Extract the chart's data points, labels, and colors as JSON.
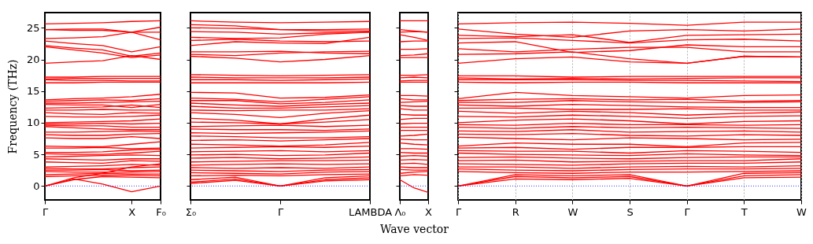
{
  "chart_data": [
    {
      "type": "line",
      "ylabel": "Frequency (THz)",
      "ylim": [
        -2.2,
        27.4
      ],
      "yticks": [
        0,
        5,
        10,
        15,
        20,
        25
      ],
      "categories": [
        "Γ",
        null,
        null,
        "X",
        "F₀"
      ],
      "ref_lines": [
        {
          "axis": "y",
          "value": 0,
          "label": null,
          "color": "#0000ff",
          "line_style": "dotted"
        }
      ],
      "series": [
        {
          "color": "#ff0000",
          "values": [
            25.6,
            25.7,
            25.8,
            26.0,
            26.1
          ]
        },
        {
          "color": "#ff0000",
          "values": [
            24.7,
            24.6,
            24.6,
            24.3,
            25.1
          ]
        },
        {
          "color": "#ff0000",
          "values": [
            24.7,
            24.8,
            24.8,
            24.3,
            24.3
          ]
        },
        {
          "color": "#ff0000",
          "values": [
            23.3,
            23.4,
            23.6,
            24.3,
            23.1
          ]
        },
        {
          "color": "#ff0000",
          "values": [
            22.9,
            22.5,
            22.2,
            21.2,
            22.0
          ]
        },
        {
          "color": "#ff0000",
          "values": [
            22.2,
            21.8,
            21.5,
            20.5,
            21.0
          ]
        },
        {
          "color": "#ff0000",
          "values": [
            22.0,
            21.5,
            21.0,
            20.3,
            20.7
          ]
        },
        {
          "color": "#ff0000",
          "values": [
            19.4,
            19.6,
            19.8,
            20.6,
            20.0
          ]
        },
        {
          "color": "#ff0000",
          "values": [
            17.2,
            17.2,
            17.3,
            17.3,
            17.3
          ]
        },
        {
          "color": "#ff0000",
          "values": [
            16.9,
            17.0,
            17.0,
            17.0,
            17.0
          ]
        },
        {
          "color": "#ff0000",
          "values": [
            16.8,
            16.7,
            16.7,
            16.6,
            16.6
          ]
        },
        {
          "color": "#ff0000",
          "values": [
            16.3,
            16.3,
            16.4,
            16.4,
            16.4
          ]
        },
        {
          "color": "#ff0000",
          "values": [
            13.6,
            13.8,
            13.9,
            14.1,
            14.5
          ]
        },
        {
          "color": "#ff0000",
          "values": [
            13.4,
            13.5,
            13.6,
            13.5,
            13.8
          ]
        },
        {
          "color": "#ff0000",
          "values": [
            13.1,
            13.1,
            13.2,
            13.3,
            13.4
          ]
        },
        {
          "color": "#ff0000",
          "values": [
            12.9,
            12.8,
            12.8,
            12.4,
            12.9
          ]
        },
        {
          "color": "#ff0000",
          "values": [
            12.3,
            12.4,
            12.5,
            12.8,
            12.4
          ]
        },
        {
          "color": "#ff0000",
          "values": [
            12.0,
            12.0,
            12.1,
            12.0,
            12.0
          ]
        },
        {
          "color": "#ff0000",
          "values": [
            11.6,
            11.4,
            11.3,
            11.6,
            11.5
          ]
        },
        {
          "color": "#ff0000",
          "values": [
            11.0,
            10.9,
            10.9,
            11.0,
            11.2
          ]
        },
        {
          "color": "#ff0000",
          "values": [
            10.0,
            10.1,
            10.2,
            10.3,
            10.6
          ]
        },
        {
          "color": "#ff0000",
          "values": [
            9.8,
            9.8,
            9.9,
            9.8,
            9.9
          ]
        },
        {
          "color": "#ff0000",
          "values": [
            9.6,
            9.5,
            9.5,
            9.3,
            9.3
          ]
        },
        {
          "color": "#ff0000",
          "values": [
            9.4,
            9.2,
            9.0,
            8.9,
            8.9
          ]
        },
        {
          "color": "#ff0000",
          "values": [
            8.5,
            8.5,
            8.6,
            8.7,
            8.6
          ]
        },
        {
          "color": "#ff0000",
          "values": [
            8.1,
            8.0,
            8.0,
            8.2,
            8.3
          ]
        },
        {
          "color": "#ff0000",
          "values": [
            7.6,
            7.5,
            7.5,
            7.8,
            7.5
          ]
        },
        {
          "color": "#ff0000",
          "values": [
            6.3,
            6.2,
            6.2,
            6.6,
            7.0
          ]
        },
        {
          "color": "#ff0000",
          "values": [
            6.0,
            6.0,
            6.1,
            5.9,
            6.0
          ]
        },
        {
          "color": "#ff0000",
          "values": [
            5.3,
            5.3,
            5.4,
            5.7,
            5.8
          ]
        },
        {
          "color": "#ff0000",
          "values": [
            5.1,
            5.0,
            5.0,
            5.2,
            5.5
          ]
        },
        {
          "color": "#ff0000",
          "values": [
            4.6,
            4.7,
            4.8,
            4.9,
            4.8
          ]
        },
        {
          "color": "#ff0000",
          "values": [
            4.3,
            4.2,
            4.1,
            4.3,
            4.3
          ]
        },
        {
          "color": "#ff0000",
          "values": [
            3.8,
            3.7,
            3.6,
            4.0,
            3.9
          ]
        },
        {
          "color": "#ff0000",
          "values": [
            3.0,
            3.1,
            3.2,
            3.4,
            3.3
          ]
        },
        {
          "color": "#ff0000",
          "values": [
            2.8,
            2.7,
            2.7,
            2.9,
            3.0
          ]
        },
        {
          "color": "#ff0000",
          "values": [
            2.5,
            2.5,
            2.6,
            2.4,
            2.5
          ]
        },
        {
          "color": "#ff0000",
          "values": [
            2.3,
            2.2,
            2.2,
            2.2,
            2.3
          ]
        },
        {
          "color": "#ff0000",
          "values": [
            1.8,
            1.9,
            2.0,
            1.9,
            1.9
          ]
        },
        {
          "color": "#ff0000",
          "values": [
            1.5,
            1.6,
            1.7,
            1.7,
            1.6
          ]
        },
        {
          "color": "#ff0000",
          "values": [
            0,
            1.0,
            1.5,
            1.4,
            1.3
          ]
        },
        {
          "color": "#ff0000",
          "values": [
            0,
            1.3,
            2.0,
            3.0,
            3.5
          ]
        },
        {
          "color": "#ff0000",
          "values": [
            0,
            1.1,
            0.3,
            -0.9,
            0
          ]
        }
      ]
    },
    {
      "type": "line",
      "ylim": [
        -2.2,
        27.4
      ],
      "yticks": [
        0,
        5,
        10,
        15,
        20,
        25
      ],
      "tick_labels": "x",
      "categories": [
        "Σ₀",
        null,
        "Γ",
        null,
        "LAMBDA"
      ],
      "ref_lines": [
        {
          "axis": "y",
          "value": 0,
          "label": null,
          "color": "#0000ff",
          "line_style": "dotted"
        }
      ],
      "series": [
        {
          "color": "#ff0000",
          "values": [
            26.1,
            25.9,
            25.8,
            25.9,
            26.0
          ]
        },
        {
          "color": "#ff0000",
          "values": [
            25.5,
            25.3,
            24.7,
            24.7,
            24.8
          ]
        },
        {
          "color": "#ff0000",
          "values": [
            25.0,
            24.9,
            24.7,
            24.5,
            24.5
          ]
        },
        {
          "color": "#ff0000",
          "values": [
            24.4,
            24.3,
            24.0,
            24.2,
            24.3
          ]
        },
        {
          "color": "#ff0000",
          "values": [
            23.5,
            23.3,
            23.4,
            24.0,
            24.3
          ]
        },
        {
          "color": "#ff0000",
          "values": [
            23.0,
            23.2,
            22.9,
            22.8,
            22.9
          ]
        },
        {
          "color": "#ff0000",
          "values": [
            22.2,
            22.8,
            22.6,
            22.5,
            23.5
          ]
        },
        {
          "color": "#ff0000",
          "values": [
            21.2,
            21.2,
            21.3,
            21.0,
            20.9
          ]
        },
        {
          "color": "#ff0000",
          "values": [
            20.8,
            20.6,
            21.0,
            21.2,
            21.3
          ]
        },
        {
          "color": "#ff0000",
          "values": [
            20.5,
            20.2,
            19.6,
            20.0,
            20.6
          ]
        },
        {
          "color": "#ff0000",
          "values": [
            17.6,
            17.5,
            17.4,
            17.5,
            17.6
          ]
        },
        {
          "color": "#ff0000",
          "values": [
            17.2,
            17.1,
            17.1,
            17.1,
            17.2
          ]
        },
        {
          "color": "#ff0000",
          "values": [
            16.8,
            16.8,
            16.7,
            16.8,
            16.9
          ]
        },
        {
          "color": "#ff0000",
          "values": [
            16.3,
            16.3,
            16.3,
            16.3,
            16.4
          ]
        },
        {
          "color": "#ff0000",
          "values": [
            14.8,
            14.7,
            13.9,
            14.0,
            14.4
          ]
        },
        {
          "color": "#ff0000",
          "values": [
            13.9,
            13.7,
            13.3,
            13.7,
            14.1
          ]
        },
        {
          "color": "#ff0000",
          "values": [
            13.5,
            13.5,
            13.0,
            13.2,
            13.6
          ]
        },
        {
          "color": "#ff0000",
          "values": [
            13.1,
            12.8,
            12.6,
            12.9,
            13.1
          ]
        },
        {
          "color": "#ff0000",
          "values": [
            12.6,
            12.3,
            12.3,
            12.5,
            12.7
          ]
        },
        {
          "color": "#ff0000",
          "values": [
            12.0,
            11.9,
            12.0,
            12.0,
            12.2
          ]
        },
        {
          "color": "#ff0000",
          "values": [
            11.6,
            11.3,
            10.8,
            11.5,
            11.9
          ]
        },
        {
          "color": "#ff0000",
          "values": [
            10.7,
            10.4,
            9.8,
            10.6,
            11.2
          ]
        },
        {
          "color": "#ff0000",
          "values": [
            10.1,
            10.0,
            9.8,
            10.1,
            10.5
          ]
        },
        {
          "color": "#ff0000",
          "values": [
            9.4,
            9.5,
            9.6,
            9.4,
            9.6
          ]
        },
        {
          "color": "#ff0000",
          "values": [
            9.0,
            8.9,
            8.9,
            8.8,
            9.0
          ]
        },
        {
          "color": "#ff0000",
          "values": [
            8.4,
            8.3,
            8.4,
            8.5,
            8.7
          ]
        },
        {
          "color": "#ff0000",
          "values": [
            7.9,
            7.8,
            7.6,
            7.6,
            7.8
          ]
        },
        {
          "color": "#ff0000",
          "values": [
            7.2,
            7.3,
            7.1,
            7.3,
            7.5
          ]
        },
        {
          "color": "#ff0000",
          "values": [
            6.6,
            6.5,
            6.3,
            6.5,
            6.9
          ]
        },
        {
          "color": "#ff0000",
          "values": [
            6.0,
            6.1,
            6.2,
            6.1,
            6.3
          ]
        },
        {
          "color": "#ff0000",
          "values": [
            5.4,
            5.5,
            5.6,
            5.4,
            5.6
          ]
        },
        {
          "color": "#ff0000",
          "values": [
            4.9,
            5.0,
            4.8,
            4.9,
            5.2
          ]
        },
        {
          "color": "#ff0000",
          "values": [
            4.4,
            4.5,
            4.3,
            4.4,
            4.6
          ]
        },
        {
          "color": "#ff0000",
          "values": [
            3.8,
            3.9,
            4.0,
            4.0,
            4.1
          ]
        },
        {
          "color": "#ff0000",
          "values": [
            3.3,
            3.4,
            3.5,
            3.4,
            3.5
          ]
        },
        {
          "color": "#ff0000",
          "values": [
            2.9,
            2.8,
            2.9,
            2.8,
            3.0
          ]
        },
        {
          "color": "#ff0000",
          "values": [
            2.5,
            2.4,
            2.3,
            2.5,
            2.6
          ]
        },
        {
          "color": "#ff0000",
          "values": [
            2.1,
            2.0,
            1.9,
            2.2,
            2.3
          ]
        },
        {
          "color": "#ff0000",
          "values": [
            1.6,
            1.7,
            1.6,
            1.8,
            1.9
          ]
        },
        {
          "color": "#ff0000",
          "values": [
            1.0,
            1.4,
            0,
            1.3,
            1.6
          ]
        },
        {
          "color": "#ff0000",
          "values": [
            0.6,
            1.1,
            0,
            1.0,
            1.3
          ]
        },
        {
          "color": "#ff0000",
          "values": [
            0.4,
            0.9,
            0,
            0.8,
            1.0
          ]
        }
      ]
    },
    {
      "type": "line",
      "xlabel": "Wave vector",
      "ylim": [
        -2.2,
        27.4
      ],
      "yticks": [
        0,
        5,
        10,
        15,
        20,
        25
      ],
      "tick_labels": "x",
      "categories": [
        "Λ₀",
        null,
        "X"
      ],
      "ref_lines": [
        {
          "axis": "y",
          "value": 0,
          "label": null,
          "color": "#0000ff",
          "line_style": "dotted"
        }
      ],
      "series": [
        {
          "color": "#ff0000",
          "values": [
            26.1,
            26.1,
            26.1
          ]
        },
        {
          "color": "#ff0000",
          "values": [
            24.7,
            24.5,
            24.3
          ]
        },
        {
          "color": "#ff0000",
          "values": [
            24.3,
            24.4,
            24.3
          ]
        },
        {
          "color": "#ff0000",
          "values": [
            23.9,
            23.5,
            23.0
          ]
        },
        {
          "color": "#ff0000",
          "values": [
            22.8,
            22.9,
            22.9
          ]
        },
        {
          "color": "#ff0000",
          "values": [
            21.6,
            21.6,
            21.7
          ]
        },
        {
          "color": "#ff0000",
          "values": [
            20.6,
            20.7,
            20.9
          ]
        },
        {
          "color": "#ff0000",
          "values": [
            20.3,
            20.3,
            20.3
          ]
        },
        {
          "color": "#ff0000",
          "values": [
            17.5,
            17.5,
            17.6
          ]
        },
        {
          "color": "#ff0000",
          "values": [
            17.1,
            17.2,
            17.1
          ]
        },
        {
          "color": "#ff0000",
          "values": [
            16.6,
            16.7,
            16.7
          ]
        },
        {
          "color": "#ff0000",
          "values": [
            16.4,
            16.4,
            16.4
          ]
        },
        {
          "color": "#ff0000",
          "values": [
            14.3,
            14.3,
            14.2
          ]
        },
        {
          "color": "#ff0000",
          "values": [
            13.8,
            13.6,
            13.6
          ]
        },
        {
          "color": "#ff0000",
          "values": [
            13.2,
            13.3,
            13.4
          ]
        },
        {
          "color": "#ff0000",
          "values": [
            12.7,
            12.6,
            12.6
          ]
        },
        {
          "color": "#ff0000",
          "values": [
            12.2,
            12.0,
            12.0
          ]
        },
        {
          "color": "#ff0000",
          "values": [
            11.3,
            11.2,
            11.2
          ]
        },
        {
          "color": "#ff0000",
          "values": [
            10.5,
            10.7,
            10.7
          ]
        },
        {
          "color": "#ff0000",
          "values": [
            9.8,
            9.9,
            9.9
          ]
        },
        {
          "color": "#ff0000",
          "values": [
            9.3,
            9.3,
            9.3
          ]
        },
        {
          "color": "#ff0000",
          "values": [
            8.8,
            8.8,
            8.8
          ]
        },
        {
          "color": "#ff0000",
          "values": [
            7.9,
            8.0,
            8.2
          ]
        },
        {
          "color": "#ff0000",
          "values": [
            7.4,
            7.3,
            7.3
          ]
        },
        {
          "color": "#ff0000",
          "values": [
            6.8,
            6.6,
            6.5
          ]
        },
        {
          "color": "#ff0000",
          "values": [
            5.9,
            5.9,
            5.8
          ]
        },
        {
          "color": "#ff0000",
          "values": [
            5.3,
            5.2,
            5.2
          ]
        },
        {
          "color": "#ff0000",
          "values": [
            4.7,
            4.8,
            4.7
          ]
        },
        {
          "color": "#ff0000",
          "values": [
            4.1,
            4.2,
            4.1
          ]
        },
        {
          "color": "#ff0000",
          "values": [
            3.5,
            3.6,
            3.4
          ]
        },
        {
          "color": "#ff0000",
          "values": [
            3.0,
            2.9,
            2.9
          ]
        },
        {
          "color": "#ff0000",
          "values": [
            2.6,
            2.5,
            2.5
          ]
        },
        {
          "color": "#ff0000",
          "values": [
            2.0,
            2.2,
            2.3
          ]
        },
        {
          "color": "#ff0000",
          "values": [
            1.6,
            1.8,
            1.7
          ]
        },
        {
          "color": "#ff0000",
          "values": [
            1.0,
            -0.3,
            -1.0
          ]
        }
      ]
    },
    {
      "type": "line",
      "ylim": [
        -2.2,
        27.4
      ],
      "yticks": [
        0,
        5,
        10,
        15,
        20,
        25
      ],
      "tick_labels": "x",
      "categories": [
        "Γ",
        "R",
        "W",
        "S",
        "Γ",
        "T",
        "W"
      ],
      "grid": "x",
      "ref_lines": [
        {
          "axis": "y",
          "value": 0,
          "label": null,
          "color": "#0000ff",
          "line_style": "dotted"
        }
      ],
      "series": [
        {
          "color": "#ff0000",
          "values": [
            25.6,
            25.8,
            25.9,
            25.7,
            25.4,
            25.9,
            25.9
          ]
        },
        {
          "color": "#ff0000",
          "values": [
            24.8,
            24.0,
            23.5,
            24.5,
            24.7,
            24.5,
            24.8
          ]
        },
        {
          "color": "#ff0000",
          "values": [
            23.8,
            23.6,
            23.9,
            22.7,
            23.8,
            23.9,
            24.0
          ]
        },
        {
          "color": "#ff0000",
          "values": [
            23.3,
            23.4,
            23.0,
            22.6,
            23.1,
            23.2,
            22.9
          ]
        },
        {
          "color": "#ff0000",
          "values": [
            22.6,
            22.8,
            21.1,
            21.4,
            22.3,
            22.0,
            22.0
          ]
        },
        {
          "color": "#ff0000",
          "values": [
            21.7,
            21.2,
            21.6,
            21.9,
            21.9,
            21.2,
            21.2
          ]
        },
        {
          "color": "#ff0000",
          "values": [
            20.8,
            20.9,
            21.2,
            20.1,
            19.4,
            20.5,
            20.4
          ]
        },
        {
          "color": "#ff0000",
          "values": [
            19.4,
            20.1,
            20.4,
            19.6,
            19.4,
            20.5,
            20.4
          ]
        },
        {
          "color": "#ff0000",
          "values": [
            17.4,
            17.4,
            17.2,
            17.3,
            17.3,
            17.3,
            17.3
          ]
        },
        {
          "color": "#ff0000",
          "values": [
            17.1,
            16.9,
            17.0,
            16.9,
            17.0,
            17.1,
            17.1
          ]
        },
        {
          "color": "#ff0000",
          "values": [
            16.8,
            16.8,
            16.8,
            16.7,
            16.7,
            16.6,
            16.5
          ]
        },
        {
          "color": "#ff0000",
          "values": [
            16.4,
            16.3,
            16.4,
            16.4,
            16.3,
            16.3,
            16.3
          ]
        },
        {
          "color": "#ff0000",
          "values": [
            13.8,
            14.8,
            14.3,
            14.1,
            13.9,
            14.3,
            14.4
          ]
        },
        {
          "color": "#ff0000",
          "values": [
            13.5,
            13.7,
            13.8,
            13.6,
            13.7,
            13.4,
            13.5
          ]
        },
        {
          "color": "#ff0000",
          "values": [
            13.2,
            13.2,
            13.5,
            13.3,
            13.2,
            13.2,
            13.3
          ]
        },
        {
          "color": "#ff0000",
          "values": [
            12.8,
            12.6,
            12.9,
            12.7,
            12.5,
            12.4,
            12.4
          ]
        },
        {
          "color": "#ff0000",
          "values": [
            12.3,
            12.3,
            12.1,
            12.1,
            12.2,
            12.0,
            12.0
          ]
        },
        {
          "color": "#ff0000",
          "values": [
            11.8,
            11.5,
            11.8,
            11.6,
            11.2,
            11.5,
            11.7
          ]
        },
        {
          "color": "#ff0000",
          "values": [
            11.0,
            10.9,
            11.2,
            11.0,
            10.7,
            11.0,
            11.1
          ]
        },
        {
          "color": "#ff0000",
          "values": [
            10.0,
            10.4,
            10.6,
            10.3,
            9.8,
            10.2,
            10.3
          ]
        },
        {
          "color": "#ff0000",
          "values": [
            9.7,
            9.6,
            9.9,
            9.7,
            9.7,
            9.6,
            9.7
          ]
        },
        {
          "color": "#ff0000",
          "values": [
            9.3,
            9.1,
            9.4,
            9.2,
            9.3,
            9.2,
            9.1
          ]
        },
        {
          "color": "#ff0000",
          "values": [
            8.7,
            8.6,
            8.9,
            8.5,
            8.6,
            8.7,
            8.5
          ]
        },
        {
          "color": "#ff0000",
          "values": [
            8.2,
            8.1,
            8.3,
            8.0,
            7.9,
            8.1,
            8.0
          ]
        },
        {
          "color": "#ff0000",
          "values": [
            7.7,
            7.5,
            7.3,
            7.6,
            7.5,
            7.3,
            7.4
          ]
        },
        {
          "color": "#ff0000",
          "values": [
            6.3,
            6.8,
            6.6,
            6.6,
            6.2,
            6.8,
            6.9
          ]
        },
        {
          "color": "#ff0000",
          "values": [
            6.0,
            6.1,
            5.8,
            6.1,
            6.1,
            6.2,
            6.2
          ]
        },
        {
          "color": "#ff0000",
          "values": [
            5.6,
            5.5,
            5.5,
            5.2,
            5.6,
            5.5,
            5.3
          ]
        },
        {
          "color": "#ff0000",
          "values": [
            5.2,
            5.0,
            4.9,
            4.8,
            5.1,
            4.9,
            4.8
          ]
        },
        {
          "color": "#ff0000",
          "values": [
            4.5,
            4.6,
            4.4,
            4.3,
            4.5,
            4.6,
            4.6
          ]
        },
        {
          "color": "#ff0000",
          "values": [
            4.0,
            4.1,
            3.8,
            3.9,
            4.0,
            4.0,
            4.3
          ]
        },
        {
          "color": "#ff0000",
          "values": [
            3.5,
            3.4,
            3.3,
            3.5,
            3.6,
            3.6,
            3.8
          ]
        },
        {
          "color": "#ff0000",
          "values": [
            3.0,
            3.0,
            2.8,
            3.0,
            3.1,
            3.0,
            3.2
          ]
        },
        {
          "color": "#ff0000",
          "values": [
            2.7,
            2.5,
            2.4,
            2.6,
            2.7,
            2.7,
            2.8
          ]
        },
        {
          "color": "#ff0000",
          "values": [
            2.3,
            2.1,
            2.0,
            2.2,
            2.2,
            2.3,
            2.4
          ]
        },
        {
          "color": "#ff0000",
          "values": [
            0,
            1.8,
            1.6,
            1.8,
            0,
            2.0,
            2.1
          ]
        },
        {
          "color": "#ff0000",
          "values": [
            0,
            1.5,
            1.3,
            1.5,
            0,
            1.6,
            1.8
          ]
        },
        {
          "color": "#ff0000",
          "values": [
            0,
            1.1,
            1.0,
            1.2,
            0,
            1.3,
            1.4
          ]
        }
      ]
    }
  ]
}
